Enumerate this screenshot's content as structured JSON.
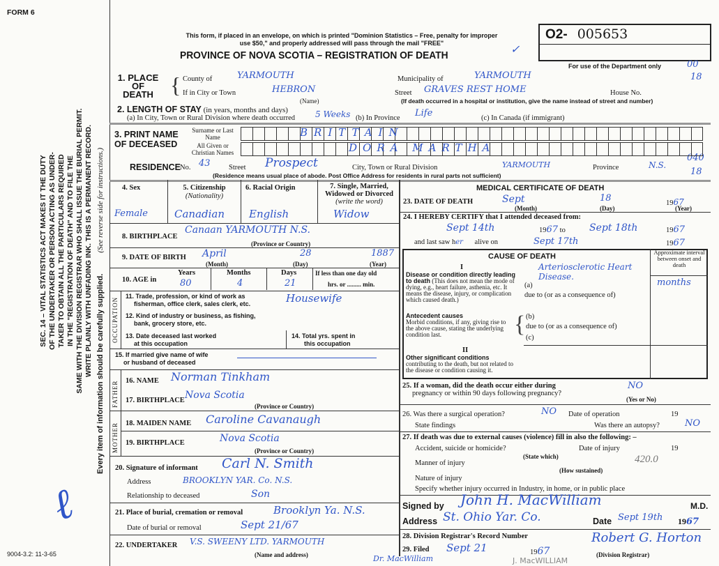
{
  "form_label": "FORM 6",
  "form_code": "9004-3.2: 11-3-65",
  "header": {
    "notice_line1": "This form, if placed in an envelope, on which is printed \"Dominion Statistics – Free, penalty for improper",
    "notice_line2": "use $50,\" and properly addressed will pass through the mail \"FREE\"",
    "title": "PROVINCE OF NOVA SCOTIA – REGISTRATION OF DEATH",
    "reg_prefix": "O2-",
    "reg_number": "005653",
    "dept_only": "For use of the Department only",
    "margin_codes": [
      "00",
      "18",
      "040",
      "18"
    ],
    "check": "✓"
  },
  "side_text": {
    "lines": [
      "SEC. 14 – VITAL STATISTICS ACT MAKES IT THE DUTY",
      "OF THE UNDERTAKER OR PERSON ACTING AS UNDER-",
      "TAKER TO OBTAIN ALL THE PARTICULARS REQUIRED",
      "IN THE \"REGISTRATION OF DEATH\" AND TO FILE THE",
      "SAME WITH THE DIVISION REGISTRAR WHO SHALL ISSUE THE BURIAL PERMIT.",
      "WRITE PLAINLY WITH UNFADING INK. THIS IS A PERMANENT RECORD."
    ],
    "every_item": "Every item of information should be carefully supplied.",
    "see_reverse": "(See reverse side for instructions.)"
  },
  "place": {
    "label": "1. PLACE OF DEATH",
    "county_label": "County of",
    "county": "YARMOUTH",
    "municipality_label": "Municipality of",
    "municipality": "YARMOUTH",
    "city_label": "If in City or Town",
    "city": "HEBRON",
    "name_note": "(Name)",
    "street_label": "Street",
    "street": "GRAVES REST HOME",
    "house_label": "House No.",
    "street_note": "(If death occurred in a hospital or institution, give the name instead of street and number)"
  },
  "stay": {
    "label": "2. LENGTH OF STAY",
    "label_note": "(in years, months and days)",
    "a_label": "(a) In City, Town or Rural Division where death occurred",
    "a": "5 Weeks",
    "b_label": "(b) In Province",
    "b": "Life",
    "c_label": "(c) In Canada (if immigrant)"
  },
  "name": {
    "label": "3. PRINT NAME OF DECEASED",
    "surname_label": "Surname or Last Name",
    "surname": "BRITTAIN",
    "given_label": "All Given or Christian Names",
    "given": "DORA   MARTHA"
  },
  "residence": {
    "label": "RESIDENCE",
    "no_label": "No.",
    "no": "43",
    "street_label": "Street",
    "street": "Prospect",
    "city_label": "City, Town or Rural Division",
    "city": "YARMOUTH",
    "province_label": "Province",
    "province": "N.S.",
    "note": "(Residence means usual place of abode. Post Office Address for residents in rural parts not sufficient)"
  },
  "personal": {
    "sex_label": "4. Sex",
    "sex": "Female",
    "citizenship_label": "5. Citizenship",
    "citizenship_note": "(Nationality)",
    "citizenship": "Canadian",
    "racial_label": "6. Racial Origin",
    "racial": "English",
    "marital_label": "7. Single, Married, Widowed or Divorced",
    "marital_note": "(write the word)",
    "marital": "Widow",
    "birthplace_label": "8. BIRTHPLACE",
    "birthplace": "Canaan    YARMOUTH  N.S.",
    "prov_country": "(Province or Country)",
    "dob_label": "9. DATE OF BIRTH",
    "dob_month": "April",
    "dob_day": "28",
    "dob_year": "1887",
    "month_note": "(Month)",
    "day_note": "(Day)",
    "year_note": "(Year)",
    "age_label": "10. AGE in",
    "years_label": "Years",
    "years": "80",
    "months_label": "Months",
    "months": "4",
    "days_label": "Days",
    "days": "21",
    "less_label": "If less than one day old",
    "hrs_label": "hrs. or ......... min."
  },
  "occupation": {
    "side": "OCCUPATION",
    "q11": "11. Trade, profession, or kind of work as",
    "q11b": "fisherman, office clerk, sales clerk, etc.",
    "trade": "Housewife",
    "q12": "12. Kind of industry or business, as fishing,",
    "q12b": "bank, grocery store, etc.",
    "q13": "13. Date deceased last worked",
    "q13b": "at this occupation",
    "q14": "14. Total yrs. spent in",
    "q14b": "this occupation"
  },
  "spouse": {
    "q15": "15. If married give name of wife",
    "q15b": "or husband of deceased"
  },
  "parents": {
    "father_side": "FATHER",
    "mother_side": "MOTHER",
    "q16": "16. NAME",
    "father_name": "Norman Tinkham",
    "q17": "17. BIRTHPLACE",
    "father_birthplace": "Nova Scotia",
    "q18": "18. MAIDEN NAME",
    "mother_name": "Caroline Cavanaugh",
    "q19": "19. BIRTHPLACE",
    "mother_birthplace": "Nova Scotia"
  },
  "informant": {
    "q20": "20. Signature of informant",
    "signature": "Carl N. Smith",
    "address_label": "Address",
    "address": "BROOKLYN YAR. Co. N.S.",
    "relationship_label": "Relationship to deceased",
    "relationship": "Son"
  },
  "burial": {
    "q21": "21. Place of burial, cremation or removal",
    "place": "Brooklyn Ya. N.S.",
    "date_label": "Date of burial or removal",
    "date": "Sept 21/67",
    "q22": "22. UNDERTAKER",
    "undertaker": "V.S. SWEENY LTD.  YARMOUTH",
    "undertaker_note": "(Name and address)",
    "bottom_note1": "Dr. MacWilliam",
    "bottom_note2": "J. MacWILLIAM"
  },
  "medical": {
    "title": "MEDICAL CERTIFICATE OF DEATH",
    "q23": "23. DATE OF DEATH",
    "death_month": "Sept",
    "death_day": "18",
    "death_year": "67",
    "q24": "24. I HEREBY CERTIFY that I attended deceased from:",
    "from": "Sept 14th",
    "from_year": "67",
    "to": "Sept 18th",
    "to_year": "67",
    "last_saw": "and last saw h",
    "last_saw_fill": "er",
    "alive_on": "alive on",
    "alive_date": "Sept 17th",
    "alive_year": "67",
    "century": "19",
    "to_word": "to"
  },
  "cause": {
    "title": "CAUSE OF DEATH",
    "interval_header": "Approximate interval between onset and death",
    "part1": "I",
    "disease_label": "Disease or condition directly leading to death",
    "disease_note": "(This does not mean the mode of dying, e.g., heart failure, asthenia, etc. It means the disease, injury, or complication which caused death.)",
    "a_label": "(a)",
    "a": "Arteriosclerotic Heart Disease.",
    "a_interval": "months",
    "due_to": "due to (or as a consequence of)",
    "antecedent_label": "Antecedent causes",
    "antecedent_note": "Morbid conditions, if any, giving rise to the above cause, stating the underlying condition last.",
    "b_label": "(b)",
    "c_label": "(c)",
    "part2": "II",
    "other_label": "Other significant conditions",
    "other_note": "contributing to the death, but not related to the disease or condition causing it."
  },
  "q25": {
    "text": "25. If a woman, did the death occur either during",
    "text2": "pregnancy or within 90 days following pregnancy?",
    "answer": "NO",
    "note": "(Yes or No)"
  },
  "q26": {
    "text": "26. Was there a surgical operation?",
    "answer": "NO",
    "date_label": "Date of operation",
    "findings_label": "State findings",
    "autopsy_label": "Was there an autopsy?",
    "autopsy": "NO"
  },
  "q27": {
    "text": "27. If death was due to external causes (violence) fill in also the following: –",
    "accident_label": "Accident, suicide or homicide?",
    "state_which": "(State which)",
    "date_label": "Date of injury",
    "manner_label": "Manner of injury",
    "manner_code": "420.0",
    "how": "(How sustained)",
    "nature_label": "Nature of injury",
    "specify_label": "Specify whether injury occurred in Industry, in home, or in public place"
  },
  "signed": {
    "signed_label": "Signed by",
    "signature": "John H. MacWilliam",
    "md": "M.D.",
    "address_label": "Address",
    "address": "St. Ohio Yar. Co.",
    "date_label": "Date",
    "date": "Sept 19th",
    "year": "67"
  },
  "registrar": {
    "q28": "28. Division Registrar's Record Number",
    "q29": "29. Filed",
    "filed": "Sept 21",
    "filed_year": "67",
    "signature": "Robert G. Horton",
    "note": "(Division Registrar)"
  }
}
